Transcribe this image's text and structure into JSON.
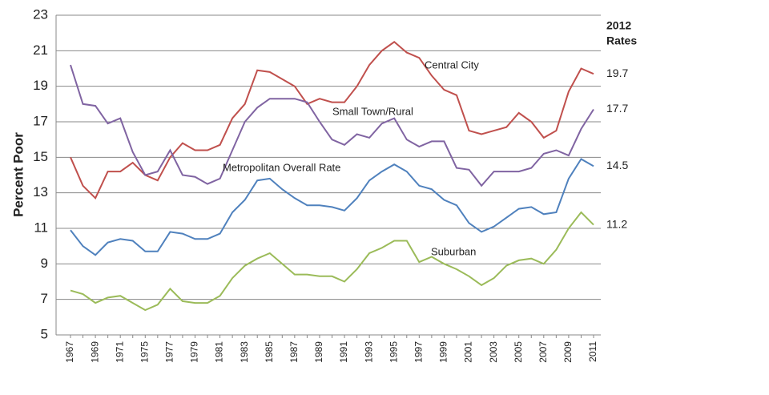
{
  "chart_data": {
    "type": "line",
    "y_label": "Percent Poor",
    "categories": [
      "1967",
      null,
      "1969",
      null,
      "1971",
      null,
      "1975",
      null,
      "1977",
      null,
      "1979",
      null,
      "1981",
      null,
      "1983",
      null,
      "1985",
      null,
      "1987",
      null,
      "1989",
      null,
      "1991",
      null,
      "1993",
      null,
      "1995",
      null,
      "1997",
      null,
      "1999",
      null,
      "2001",
      null,
      "2003",
      null,
      "2005",
      null,
      "2007",
      null,
      "2009",
      null,
      "2011"
    ],
    "series": [
      {
        "name": "Central City",
        "color": "#c0504d",
        "values": [
          15.0,
          13.4,
          12.7,
          14.2,
          14.2,
          14.7,
          14.0,
          13.7,
          15.0,
          15.8,
          15.4,
          15.4,
          15.7,
          17.2,
          18.0,
          19.9,
          19.8,
          19.4,
          19.0,
          18.0,
          18.3,
          18.1,
          18.1,
          19.0,
          20.2,
          21.0,
          21.5,
          20.9,
          20.6,
          19.6,
          18.8,
          18.5,
          16.5,
          16.3,
          16.5,
          16.7,
          17.5,
          17.0,
          16.1,
          16.5,
          18.7,
          20.0,
          19.7
        ]
      },
      {
        "name": "Small Town/Rural",
        "color": "#8064a2",
        "values": [
          20.2,
          18.0,
          17.9,
          16.9,
          17.2,
          15.3,
          14.0,
          14.2,
          15.4,
          14.0,
          13.9,
          13.5,
          13.8,
          15.4,
          17.0,
          17.8,
          18.3,
          18.3,
          18.3,
          18.1,
          17.0,
          16.0,
          15.7,
          16.3,
          16.1,
          16.9,
          17.2,
          16.0,
          15.6,
          15.9,
          15.9,
          14.4,
          14.3,
          13.4,
          14.2,
          14.2,
          14.2,
          14.4,
          15.2,
          15.4,
          15.1,
          16.6,
          17.7
        ]
      },
      {
        "name": "Metropolitan Overall Rate",
        "color": "#4f81bd",
        "values": [
          10.9,
          10.0,
          9.5,
          10.2,
          10.4,
          10.3,
          9.7,
          9.7,
          10.8,
          10.7,
          10.4,
          10.4,
          10.7,
          11.9,
          12.6,
          13.7,
          13.8,
          13.2,
          12.7,
          12.3,
          12.3,
          12.2,
          12.0,
          12.7,
          13.7,
          14.2,
          14.6,
          14.2,
          13.4,
          13.2,
          12.6,
          12.3,
          11.3,
          10.8,
          11.1,
          11.6,
          12.1,
          12.2,
          11.8,
          11.9,
          13.8,
          14.9,
          14.5
        ]
      },
      {
        "name": "Suburban",
        "color": "#9bbb59",
        "values": [
          7.5,
          7.3,
          6.8,
          7.1,
          7.2,
          6.8,
          6.4,
          6.7,
          7.6,
          6.9,
          6.8,
          6.8,
          7.2,
          8.2,
          8.9,
          9.3,
          9.6,
          9.0,
          8.4,
          8.4,
          8.3,
          8.3,
          8.0,
          8.7,
          9.6,
          9.9,
          10.3,
          10.3,
          9.1,
          9.4,
          9.0,
          8.7,
          8.3,
          7.8,
          8.2,
          8.9,
          9.2,
          9.3,
          9.0,
          9.8,
          11.0,
          11.9,
          11.2
        ]
      }
    ],
    "ylim": [
      5,
      23
    ],
    "yticks": [
      5,
      7,
      9,
      11,
      13,
      15,
      17,
      19,
      21,
      23
    ],
    "grid": true,
    "rates_title": [
      "2012",
      "Rates"
    ],
    "rates": [
      19.7,
      17.7,
      14.5,
      11.2
    ]
  }
}
